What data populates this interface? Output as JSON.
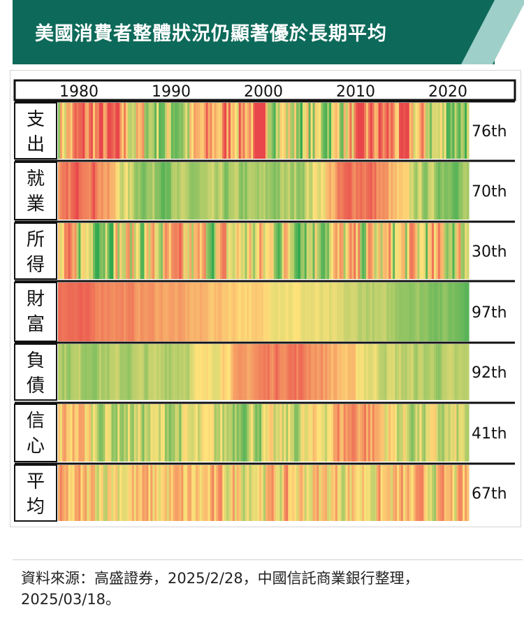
{
  "title": "美國消費者整體狀況仍顯著優於長期平均",
  "source": "資料來源：高盛證券，2025/2/28，中國信託商業銀行整理，2025/03/18。",
  "colors": {
    "title_bg": "#0d6a5a",
    "title_accent": "#9fcfc9",
    "high": "#e8464a",
    "mid": "#ffe27a",
    "low": "#2fa84f"
  },
  "chart_data": {
    "type": "heatmap",
    "x_ticks": [
      "1980",
      "1990",
      "2000",
      "2010",
      "2020"
    ],
    "rows": [
      {
        "label": "支出",
        "label_chars": [
          "支",
          "出"
        ],
        "percentile": "76th"
      },
      {
        "label": "就業",
        "label_chars": [
          "就",
          "業"
        ],
        "percentile": "70th"
      },
      {
        "label": "所得",
        "label_chars": [
          "所",
          "得"
        ],
        "percentile": "30th"
      },
      {
        "label": "財富",
        "label_chars": [
          "財",
          "富"
        ],
        "percentile": "97th"
      },
      {
        "label": "負債",
        "label_chars": [
          "負",
          "債"
        ],
        "percentile": "92th"
      },
      {
        "label": "信心",
        "label_chars": [
          "信",
          "心"
        ],
        "percentile": "41th"
      },
      {
        "label": "平均",
        "label_chars": [
          "平",
          "均"
        ],
        "percentile": "67th"
      }
    ]
  }
}
